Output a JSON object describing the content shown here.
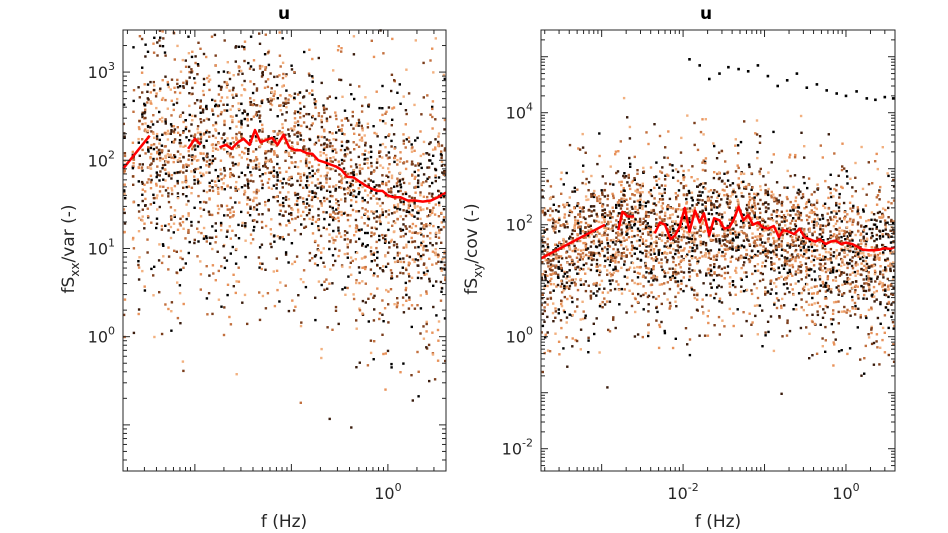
{
  "chart_data": [
    {
      "type": "scatter",
      "title": "u",
      "xlabel": "f (Hz)",
      "ylabel_main": "fS",
      "ylabel_sub": "xx",
      "ylabel_rest": "/var (-)",
      "xscale": "log",
      "yscale": "log",
      "xlim": [
        0.0018,
        4
      ],
      "ylim": [
        0.03,
        3000
      ],
      "xticks": [
        {
          "value": 1,
          "base": "10",
          "exp": "0"
        }
      ],
      "yticks": [
        {
          "value": 1,
          "base": "10",
          "exp": "0"
        },
        {
          "value": 10,
          "base": "10",
          "exp": "1"
        },
        {
          "value": 100,
          "base": "10",
          "exp": "2"
        },
        {
          "value": 1000,
          "base": "10",
          "exp": "3"
        }
      ],
      "point_colors": [
        "#000000",
        "#3a1c0d",
        "#7a3d1c",
        "#c2703f",
        "#e8925a",
        "#f2b07f"
      ],
      "line_color": "#ff0000",
      "median_segments": [
        {
          "x": [
            0.0018,
            0.0034
          ],
          "y": [
            80,
            190
          ]
        },
        {
          "x": [
            0.0085,
            0.01,
            0.0115
          ],
          "y": [
            135,
            175,
            150
          ]
        },
        {
          "x": [
            0.018,
            0.021,
            0.024,
            0.028,
            0.032,
            0.037,
            0.042,
            0.048,
            0.055,
            0.063,
            0.072,
            0.083,
            0.095,
            0.11,
            0.125,
            0.145,
            0.165,
            0.19,
            0.22,
            0.25,
            0.29,
            0.33,
            0.38,
            0.44,
            0.5,
            0.58,
            0.67,
            0.77,
            0.88,
            1.0,
            1.15,
            1.35,
            1.6,
            1.9,
            2.3,
            2.8,
            3.3,
            4.0
          ],
          "y": [
            140,
            150,
            135,
            160,
            175,
            150,
            220,
            160,
            170,
            180,
            150,
            195,
            140,
            130,
            130,
            120,
            118,
            100,
            95,
            90,
            85,
            78,
            65,
            64,
            58,
            52,
            48,
            45,
            45,
            40,
            38,
            38,
            35,
            35,
            34,
            35,
            38,
            43
          ]
        }
      ]
    },
    {
      "type": "scatter",
      "title": "u",
      "xlabel": "f (Hz)",
      "ylabel_main": "fS",
      "ylabel_sub": "xy",
      "ylabel_rest": "/cov (-)",
      "xscale": "log",
      "yscale": "log",
      "xlim": [
        0.00018,
        4
      ],
      "ylim": [
        0.004,
        300000
      ],
      "xticks": [
        {
          "value": 0.01,
          "base": "10",
          "exp": "-2"
        },
        {
          "value": 1,
          "base": "10",
          "exp": "0"
        }
      ],
      "yticks": [
        {
          "value": 0.01,
          "base": "10",
          "exp": "-2"
        },
        {
          "value": 1,
          "base": "10",
          "exp": "0"
        },
        {
          "value": 100,
          "base": "10",
          "exp": "2"
        },
        {
          "value": 10000,
          "base": "10",
          "exp": "4"
        }
      ],
      "point_colors": [
        "#000000",
        "#3a1c0d",
        "#7a3d1c",
        "#c2703f",
        "#e8925a",
        "#f2b07f"
      ],
      "line_color": "#ff0000",
      "outlier_points": {
        "x": [
          0.012,
          0.016,
          0.021,
          0.028,
          0.036,
          0.048,
          0.063,
          0.083,
          0.11,
          0.145,
          0.19,
          0.25,
          0.33,
          0.44,
          0.58,
          0.77,
          1.0,
          1.35,
          1.8,
          2.3,
          3.0,
          3.8
        ],
        "y": [
          90000,
          70000,
          40000,
          50000,
          65000,
          60000,
          55000,
          70000,
          45000,
          30000,
          38000,
          50000,
          28000,
          32000,
          25000,
          22000,
          20000,
          24000,
          18000,
          17000,
          19000,
          18000
        ]
      },
      "median_segments": [
        {
          "x": [
            0.00018,
            0.0011
          ],
          "y": [
            25,
            100
          ]
        },
        {
          "x": [
            0.0016,
            0.0018,
            0.0021,
            0.0025
          ],
          "y": [
            80,
            170,
            140,
            140
          ]
        },
        {
          "x": [
            0.0045,
            0.0052,
            0.006,
            0.007,
            0.008,
            0.009,
            0.0105,
            0.012,
            0.014,
            0.016,
            0.018,
            0.021,
            0.024,
            0.028,
            0.032,
            0.037,
            0.042,
            0.048,
            0.055,
            0.063,
            0.072,
            0.083,
            0.095,
            0.11,
            0.13,
            0.15,
            0.17,
            0.2,
            0.23,
            0.27,
            0.31,
            0.36,
            0.42,
            0.48,
            0.56,
            0.65,
            0.75,
            0.87,
            1.0,
            1.2,
            1.4,
            1.6,
            1.9,
            2.2,
            2.6,
            3.0,
            3.5,
            4.0
          ],
          "y": [
            70,
            110,
            100,
            55,
            65,
            90,
            200,
            75,
            180,
            110,
            160,
            65,
            130,
            120,
            85,
            90,
            125,
            210,
            120,
            150,
            100,
            110,
            90,
            85,
            95,
            60,
            80,
            75,
            68,
            85,
            60,
            55,
            50,
            55,
            45,
            50,
            52,
            45,
            48,
            45,
            40,
            36,
            35,
            35,
            36,
            38,
            37,
            40
          ]
        }
      ]
    }
  ]
}
